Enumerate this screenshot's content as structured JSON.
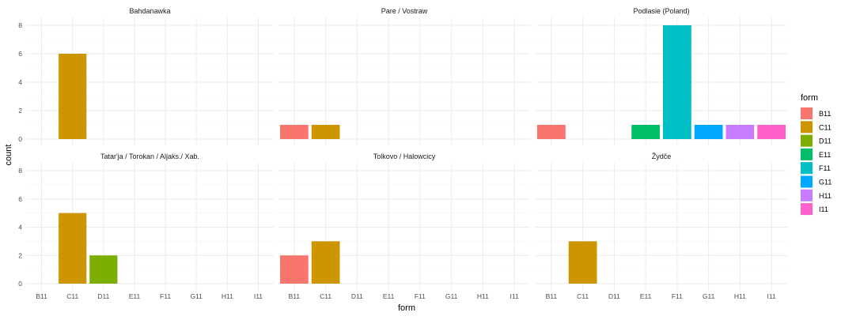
{
  "chart_data": {
    "type": "bar",
    "xlabel": "form",
    "ylabel": "count",
    "categories": [
      "B11",
      "C11",
      "D11",
      "E11",
      "F11",
      "G11",
      "H11",
      "I11"
    ],
    "ylim": [
      0,
      8
    ],
    "yticks": [
      0,
      2,
      4,
      6,
      8
    ],
    "grid": true,
    "legend": {
      "title": "form",
      "position": "right",
      "items": [
        {
          "label": "B11",
          "color": "#F8766D"
        },
        {
          "label": "C11",
          "color": "#CD9600"
        },
        {
          "label": "D11",
          "color": "#7CAE00"
        },
        {
          "label": "E11",
          "color": "#00BE67"
        },
        {
          "label": "F11",
          "color": "#00BFC4"
        },
        {
          "label": "G11",
          "color": "#00A9FF"
        },
        {
          "label": "H11",
          "color": "#C77CFF"
        },
        {
          "label": "I11",
          "color": "#FF61CC"
        }
      ]
    },
    "panels": [
      {
        "title": "Bahdanawka",
        "values": [
          0,
          6,
          0,
          0,
          0,
          0,
          0,
          0
        ]
      },
      {
        "title": "Pare / Vostraw",
        "values": [
          1,
          1,
          0,
          0,
          0,
          0,
          0,
          0
        ]
      },
      {
        "title": "Podlasie (Poland)",
        "values": [
          1,
          0,
          0,
          1,
          8,
          1,
          1,
          1
        ]
      },
      {
        "title": "Tatar'ja / Torokan / Aljaks./ Xab.",
        "values": [
          0,
          5,
          2,
          0,
          0,
          0,
          0,
          0
        ]
      },
      {
        "title": "Tolkovo / Halowcicy",
        "values": [
          2,
          3,
          0,
          0,
          0,
          0,
          0,
          0
        ]
      },
      {
        "title": "Žydče",
        "values": [
          0,
          3,
          0,
          0,
          0,
          0,
          0,
          0
        ]
      }
    ]
  }
}
